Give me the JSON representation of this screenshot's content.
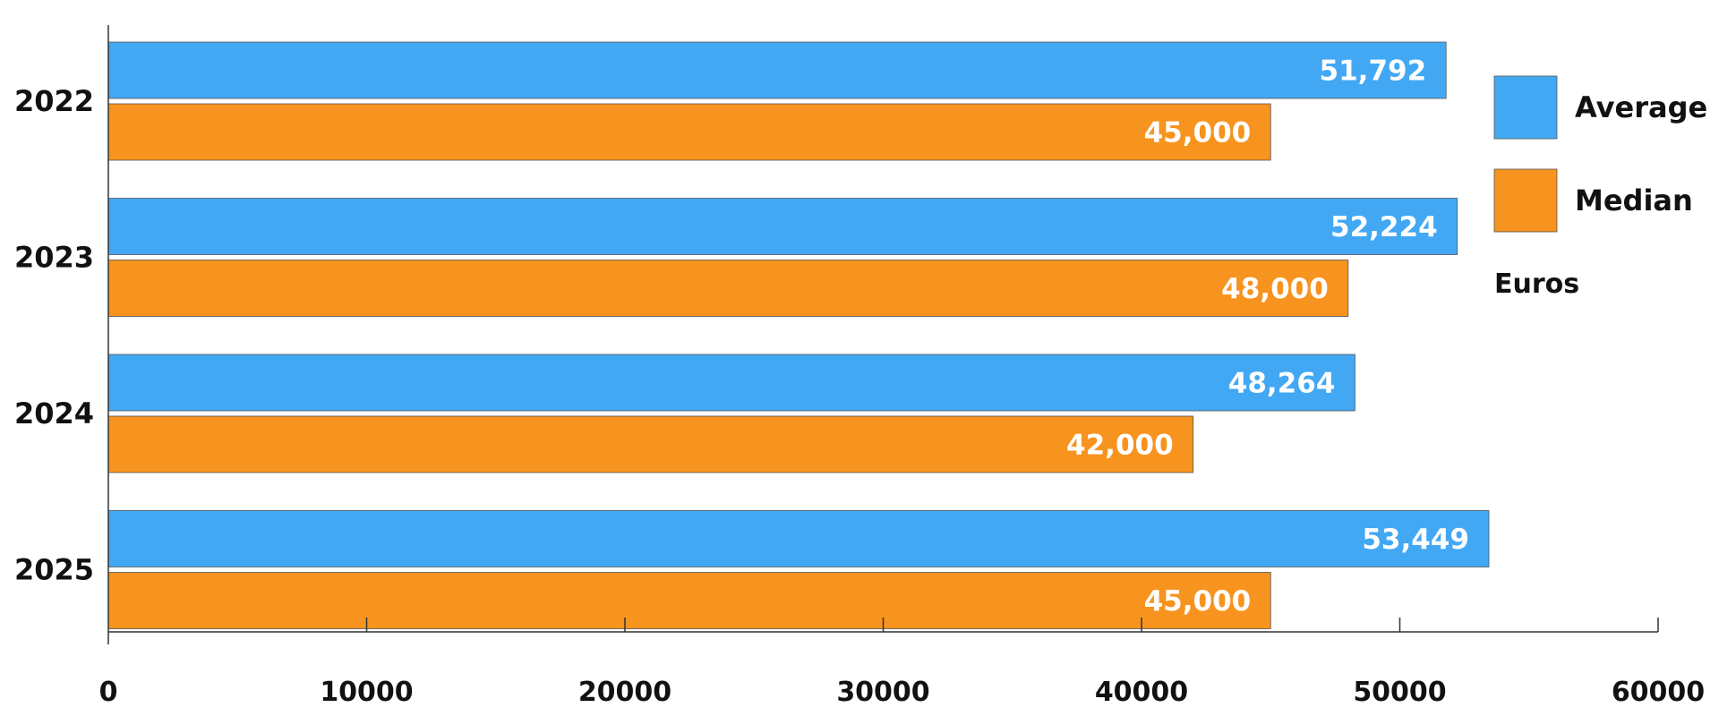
{
  "chart_data": {
    "type": "bar",
    "orientation": "horizontal",
    "categories": [
      "2022",
      "2023",
      "2024",
      "2025"
    ],
    "series": [
      {
        "name": "Average",
        "color": "#42A8F4",
        "values": [
          51792,
          52224,
          48264,
          53449
        ],
        "labels": [
          "51,792",
          "52,224",
          "48,264",
          "53,449"
        ]
      },
      {
        "name": "Median",
        "color": "#F7941F",
        "values": [
          45000,
          48000,
          42000,
          45000
        ],
        "labels": [
          "45,000",
          "48,000",
          "42,000",
          "45,000"
        ]
      }
    ],
    "xlim": [
      0,
      60000
    ],
    "xticks": [
      0,
      10000,
      20000,
      30000,
      40000,
      50000,
      60000
    ],
    "xtick_labels": [
      "0",
      "10000",
      "20000",
      "30000",
      "40000",
      "50000",
      "60000"
    ],
    "unit_label": "Euros",
    "grid": false,
    "legend": "right"
  }
}
